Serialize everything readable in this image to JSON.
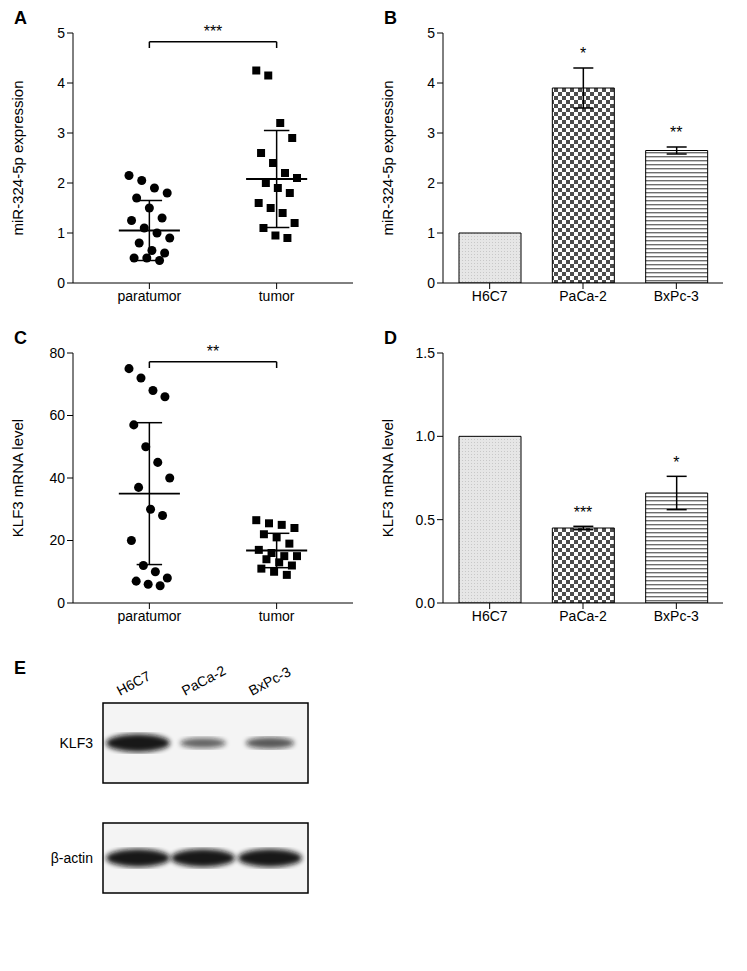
{
  "chart_data": [
    {
      "type": "scatter",
      "title": "A",
      "y_label": "miR-324-5p expression",
      "categories": [
        "paratumor",
        "tumor"
      ],
      "values": [
        [
          2.15,
          2.05,
          1.9,
          1.8,
          1.7,
          1.5,
          1.3,
          1.25,
          1.1,
          1.0,
          0.9,
          0.8,
          0.65,
          0.6,
          0.5,
          0.5,
          0.45
        ],
        [
          4.25,
          4.15,
          3.2,
          2.9,
          2.6,
          2.4,
          2.2,
          2.1,
          2.0,
          1.9,
          1.8,
          1.6,
          1.5,
          1.4,
          1.2,
          1.1,
          0.95,
          0.9
        ]
      ],
      "mean": [
        1.05,
        2.08
      ],
      "sd": [
        0.6,
        0.97
      ],
      "annotation": "***",
      "ylim": [
        0,
        5
      ],
      "yticks": [
        0,
        1,
        2,
        3,
        4,
        5
      ]
    },
    {
      "type": "bar",
      "title": "B",
      "y_label": "miR-324-5p expression",
      "categories": [
        "H6C7",
        "PaCa-2",
        "BxPc-3"
      ],
      "values": [
        1,
        3.9,
        2.65
      ],
      "errors": [
        0,
        0.4,
        0.07
      ],
      "significance": [
        null,
        "*",
        "**"
      ],
      "colors": [
        "#c8c8c8",
        "#4d4d4d",
        "#6e6e6e"
      ],
      "ylim": [
        0,
        5
      ],
      "yticks": [
        0,
        1,
        2,
        3,
        4,
        5
      ]
    },
    {
      "type": "scatter",
      "title": "C",
      "y_label": "KLF3 mRNA level",
      "categories": [
        "paratumor",
        "tumor"
      ],
      "values": [
        [
          75,
          72,
          68,
          66,
          57,
          50,
          45,
          40,
          37,
          30,
          28,
          20,
          12,
          10,
          8,
          7,
          6,
          5.5
        ],
        [
          26.5,
          25.5,
          25,
          24,
          22,
          21,
          19,
          17,
          16,
          15,
          15,
          14,
          13,
          12,
          11,
          10,
          9
        ]
      ],
      "mean": [
        35,
        16.8
      ],
      "sd": [
        22.7,
        5.5
      ],
      "annotation": "**",
      "ylim": [
        0,
        80
      ],
      "yticks": [
        0,
        20,
        40,
        60,
        80
      ]
    },
    {
      "type": "bar",
      "title": "D",
      "y_label": "KLF3 mRNA level",
      "categories": [
        "H6C7",
        "PaCa-2",
        "BxPc-3"
      ],
      "values": [
        1,
        0.45,
        0.66
      ],
      "errors": [
        0,
        0.01,
        0.1
      ],
      "significance": [
        null,
        "***",
        "*"
      ],
      "colors": [
        "#c8c8c8",
        "#4d4d4d",
        "#6e6e6e"
      ],
      "ylim": [
        0,
        1.5
      ],
      "yticks": [
        {
          "value": 0,
          "label": "0.0"
        },
        {
          "value": 0.5,
          "label": "0.5"
        },
        {
          "value": 1,
          "label": "1.0"
        },
        {
          "value": 1.5,
          "label": "1.5"
        }
      ]
    }
  ],
  "blot": {
    "title": "E",
    "lanes": [
      "H6C7",
      "PaCa-2",
      "BxPc-3"
    ],
    "rows": [
      {
        "label": "KLF3",
        "intensity": [
          1,
          0.35,
          0.45
        ]
      },
      {
        "label": "β-actin",
        "intensity": [
          1,
          1,
          1
        ]
      }
    ]
  }
}
